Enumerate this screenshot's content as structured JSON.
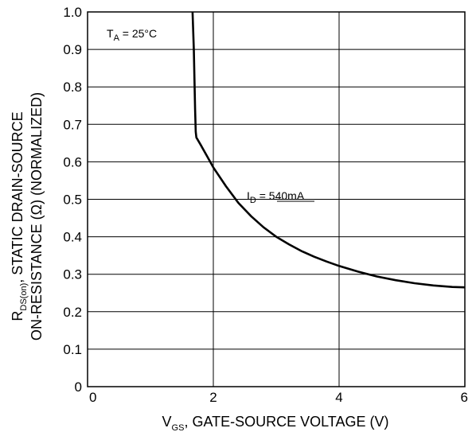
{
  "chart_data": {
    "type": "line",
    "xlabel": {
      "main": "V",
      "sub": "GS",
      "rest": ", GATE-SOURCE VOLTAGE (V)"
    },
    "ylabel": {
      "line1": {
        "main": "R",
        "sub": "DS(on)",
        "rest": ", STATIC DRAIN-SOURCE"
      },
      "line2": "ON-RESISTANCE (Ω) (NORMALIZED)"
    },
    "xlim": [
      0,
      6
    ],
    "ylim": [
      0,
      1.0
    ],
    "x_ticks": [
      0,
      2,
      4,
      6
    ],
    "x_tick_labels": [
      "0",
      "2",
      "4",
      "6"
    ],
    "y_ticks": [
      0,
      0.1,
      0.2,
      0.3,
      0.4,
      0.5,
      0.6,
      0.7,
      0.8,
      0.9,
      1.0
    ],
    "y_tick_labels": [
      "0",
      "0.1",
      "0.2",
      "0.3",
      "0.4",
      "0.5",
      "0.6",
      "0.7",
      "0.8",
      "0.9",
      "1.0"
    ],
    "grid": true,
    "annotations": {
      "ta": {
        "main": "T",
        "sub": "A",
        "rest": " = 25°C"
      },
      "id": {
        "main": "I",
        "sub": "D",
        "rest": " = 540mA"
      }
    },
    "series": [
      {
        "name": "I_D = 540mA",
        "points": [
          [
            1.67,
            1.0
          ],
          [
            1.69,
            0.9
          ],
          [
            1.7,
            0.82
          ],
          [
            1.71,
            0.74
          ],
          [
            1.72,
            0.68
          ],
          [
            1.73,
            0.665
          ],
          [
            1.8,
            0.645
          ],
          [
            1.9,
            0.615
          ],
          [
            2.0,
            0.585
          ],
          [
            2.2,
            0.535
          ],
          [
            2.4,
            0.49
          ],
          [
            2.6,
            0.455
          ],
          [
            2.8,
            0.425
          ],
          [
            3.0,
            0.4
          ],
          [
            3.2,
            0.38
          ],
          [
            3.4,
            0.362
          ],
          [
            3.6,
            0.347
          ],
          [
            3.8,
            0.334
          ],
          [
            4.0,
            0.322
          ],
          [
            4.3,
            0.307
          ],
          [
            4.6,
            0.294
          ],
          [
            4.9,
            0.284
          ],
          [
            5.2,
            0.276
          ],
          [
            5.5,
            0.27
          ],
          [
            5.8,
            0.266
          ],
          [
            6.0,
            0.265
          ]
        ]
      }
    ]
  }
}
